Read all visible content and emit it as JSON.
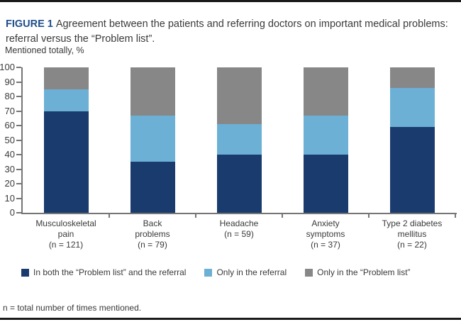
{
  "figure": {
    "label": "FIGURE 1",
    "caption": "Agreement between the patients and referring doctors on important medical problems: referral versus the “Problem list”.",
    "footnote": "n = total number of times mentioned."
  },
  "chart_data": {
    "type": "bar",
    "stacked": true,
    "orientation": "vertical",
    "title": "",
    "xlabel": "",
    "ylabel": "Mentioned totally, %",
    "ylim": [
      0,
      100
    ],
    "ytick_step": 10,
    "grid": false,
    "legend_position": "bottom",
    "categories": [
      "Musculoskeletal\npain\n(n = 121)",
      "Back\nproblems\n(n = 79)",
      "Headache\n(n = 59)",
      "Anxiety\nsymptoms\n(n = 37)",
      "Type 2 diabetes\nmellitus\n(n = 22)"
    ],
    "series": [
      {
        "name": "In both the “Problem list” and the referral",
        "color": "#1a3b6e",
        "values": [
          70,
          35,
          40,
          40,
          59
        ]
      },
      {
        "name": "Only in the referral",
        "color": "#6cb0d6",
        "values": [
          15,
          32,
          21,
          27,
          27
        ]
      },
      {
        "name": "Only in the “Problem list”",
        "color": "#878787",
        "values": [
          15,
          33,
          39,
          33,
          14
        ]
      }
    ],
    "colors": {
      "axis": "#757575",
      "text": "#3a3a3a",
      "figure_label_blue": "#1f4e8c",
      "rule_black": "#1a1a1a"
    }
  }
}
